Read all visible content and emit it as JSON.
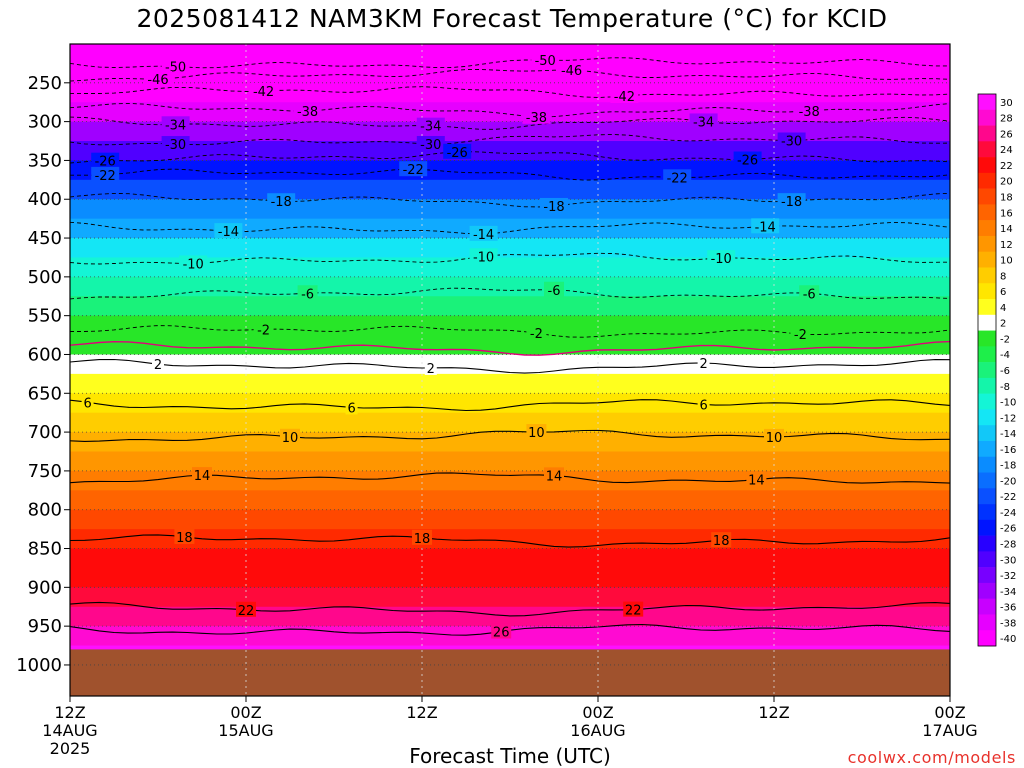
{
  "title": "2025081412 NAM3KM Forecast Temperature (°C) for KCID",
  "xlabel": "Forecast Time (UTC)",
  "credit": "coolwx.com/models",
  "chart_data": {
    "type": "heatmap",
    "title": "2025081412 NAM3KM Forecast Temperature (°C) for KCID",
    "xlabel": "Forecast Time (UTC)",
    "ylabel": "",
    "x_range": [
      "2025-08-14T12Z",
      "2025-08-17T00Z"
    ],
    "y_range_hpa": [
      1040,
      200
    ],
    "y_ticks": [
      250,
      300,
      350,
      400,
      450,
      500,
      550,
      600,
      650,
      700,
      750,
      800,
      850,
      900,
      950,
      1000
    ],
    "x_ticks": [
      {
        "line1": "12Z",
        "line2": "14AUG",
        "line3": "2025"
      },
      {
        "line1": "00Z",
        "line2": "15AUG",
        "line3": ""
      },
      {
        "line1": "12Z",
        "line2": "",
        "line3": ""
      },
      {
        "line1": "00Z",
        "line2": "16AUG",
        "line3": ""
      },
      {
        "line1": "12Z",
        "line2": "",
        "line3": ""
      },
      {
        "line1": "00Z",
        "line2": "17AUG",
        "line3": ""
      }
    ],
    "colorbar": [
      {
        "label": "30",
        "color": "#ff0fff"
      },
      {
        "label": "28",
        "color": "#ff0ad2"
      },
      {
        "label": "26",
        "color": "#ff078c"
      },
      {
        "label": "24",
        "color": "#ff0a3c"
      },
      {
        "label": "22",
        "color": "#ff0a0a"
      },
      {
        "label": "20",
        "color": "#ff2a00"
      },
      {
        "label": "18",
        "color": "#ff4800"
      },
      {
        "label": "16",
        "color": "#ff6400"
      },
      {
        "label": "14",
        "color": "#ff7d00"
      },
      {
        "label": "12",
        "color": "#ff9600"
      },
      {
        "label": "10",
        "color": "#ffb000"
      },
      {
        "label": "8",
        "color": "#ffcd00"
      },
      {
        "label": "6",
        "color": "#ffe600"
      },
      {
        "label": "4",
        "color": "#ffff1e"
      },
      {
        "label": "2",
        "color": "#ffffff"
      },
      {
        "label": "-2",
        "color": "#28e628"
      },
      {
        "label": "-4",
        "color": "#1eef4a"
      },
      {
        "label": "-6",
        "color": "#1af27a"
      },
      {
        "label": "-8",
        "color": "#14f5aa"
      },
      {
        "label": "-10",
        "color": "#14f5d6"
      },
      {
        "label": "-12",
        "color": "#14e6f5"
      },
      {
        "label": "-14",
        "color": "#12c8f8"
      },
      {
        "label": "-16",
        "color": "#10aaff"
      },
      {
        "label": "-18",
        "color": "#0a8cff"
      },
      {
        "label": "-20",
        "color": "#0a6eff"
      },
      {
        "label": "-22",
        "color": "#0a50ff"
      },
      {
        "label": "-24",
        "color": "#0032ff"
      },
      {
        "label": "-26",
        "color": "#0014ff"
      },
      {
        "label": "-28",
        "color": "#2800ff"
      },
      {
        "label": "-30",
        "color": "#5000ff"
      },
      {
        "label": "-32",
        "color": "#7800ff"
      },
      {
        "label": "-34",
        "color": "#a000ff"
      },
      {
        "label": "-36",
        "color": "#c800ff"
      },
      {
        "label": "-38",
        "color": "#e600ff"
      },
      {
        "label": "-40",
        "color": "#ff00ff"
      }
    ],
    "temperature_profile": [
      {
        "p": 200,
        "t": -55
      },
      {
        "p": 225,
        "t": -50
      },
      {
        "p": 250,
        "t": -44
      },
      {
        "p": 275,
        "t": -39
      },
      {
        "p": 300,
        "t": -34
      },
      {
        "p": 325,
        "t": -30
      },
      {
        "p": 350,
        "t": -26
      },
      {
        "p": 375,
        "t": -22
      },
      {
        "p": 400,
        "t": -19
      },
      {
        "p": 425,
        "t": -16
      },
      {
        "p": 450,
        "t": -13
      },
      {
        "p": 475,
        "t": -10
      },
      {
        "p": 500,
        "t": -8
      },
      {
        "p": 525,
        "t": -6
      },
      {
        "p": 550,
        "t": -3
      },
      {
        "p": 575,
        "t": -1
      },
      {
        "p": 600,
        "t": 1
      },
      {
        "p": 625,
        "t": 3
      },
      {
        "p": 650,
        "t": 5
      },
      {
        "p": 675,
        "t": 7
      },
      {
        "p": 700,
        "t": 9
      },
      {
        "p": 725,
        "t": 11
      },
      {
        "p": 750,
        "t": 13
      },
      {
        "p": 775,
        "t": 15
      },
      {
        "p": 800,
        "t": 17
      },
      {
        "p": 825,
        "t": 19
      },
      {
        "p": 850,
        "t": 21
      },
      {
        "p": 875,
        "t": 22
      },
      {
        "p": 900,
        "t": 23
      },
      {
        "p": 925,
        "t": 25
      },
      {
        "p": 950,
        "t": 27
      },
      {
        "p": 975,
        "t": 29
      }
    ],
    "ground_pressure_hpa": 980,
    "ground_color": "#a0522d",
    "contours": [
      {
        "value": -50,
        "p": 225,
        "dashed": true,
        "labels": [
          0.12,
          0.54
        ]
      },
      {
        "value": -46,
        "p": 240,
        "dashed": true,
        "labels": [
          0.1,
          0.57
        ]
      },
      {
        "value": -42,
        "p": 262,
        "dashed": true,
        "labels": [
          0.22,
          0.63
        ]
      },
      {
        "value": -38,
        "p": 285,
        "dashed": true,
        "labels": [
          0.27,
          0.53,
          0.84
        ]
      },
      {
        "value": -34,
        "p": 302,
        "dashed": true,
        "labels": [
          0.12,
          0.41,
          0.72
        ]
      },
      {
        "value": -30,
        "p": 324,
        "dashed": true,
        "labels": [
          0.12,
          0.41,
          0.82
        ]
      },
      {
        "value": -26,
        "p": 346,
        "dashed": true,
        "labels": [
          0.04,
          0.44,
          0.77
        ]
      },
      {
        "value": -22,
        "p": 368,
        "dashed": true,
        "labels": [
          0.04,
          0.39,
          0.69
        ]
      },
      {
        "value": -18,
        "p": 401,
        "dashed": true,
        "labels": [
          0.24,
          0.55,
          0.82
        ]
      },
      {
        "value": -14,
        "p": 437,
        "dashed": true,
        "labels": [
          0.18,
          0.47,
          0.79
        ]
      },
      {
        "value": -10,
        "p": 477,
        "dashed": true,
        "labels": [
          0.14,
          0.47,
          0.74
        ]
      },
      {
        "value": -6,
        "p": 522,
        "dashed": true,
        "labels": [
          0.27,
          0.55,
          0.84
        ]
      },
      {
        "value": -2,
        "p": 570,
        "dashed": true,
        "labels": [
          0.22,
          0.53,
          0.83
        ]
      },
      {
        "value": 2,
        "p": 615,
        "dashed": false,
        "labels": [
          0.1,
          0.41,
          0.72
        ]
      },
      {
        "value": 6,
        "p": 665,
        "dashed": false,
        "labels": [
          0.02,
          0.32,
          0.72
        ]
      },
      {
        "value": 10,
        "p": 705,
        "dashed": false,
        "labels": [
          0.25,
          0.53,
          0.8
        ]
      },
      {
        "value": 14,
        "p": 760,
        "dashed": false,
        "labels": [
          0.15,
          0.55,
          0.78
        ]
      },
      {
        "value": 18,
        "p": 840,
        "dashed": false,
        "labels": [
          0.13,
          0.4,
          0.74
        ]
      },
      {
        "value": 22,
        "p": 928,
        "dashed": false,
        "labels": [
          0.2,
          0.64
        ]
      },
      {
        "value": 26,
        "p": 955,
        "dashed": false,
        "labels": [
          0.49
        ]
      }
    ],
    "zero_line": {
      "value": 0,
      "p": 592,
      "color": "#e0007a"
    },
    "grid": true,
    "legend_placement": "right"
  }
}
